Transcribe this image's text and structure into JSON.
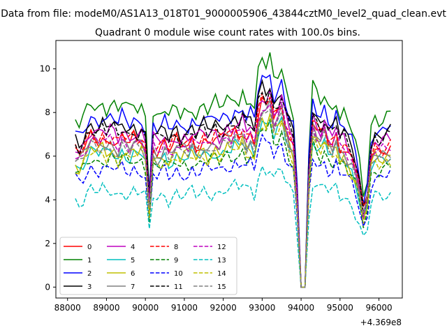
{
  "chart_data": {
    "type": "line",
    "suptitle": "Data from file: modeM0/AS1A13_018T01_9000005906_43844cztM0_level2_quad_clean.evt",
    "title": "Quadrant 0 module wise count rates with 100.0s bins.",
    "xlabel": "",
    "ylabel": "",
    "offset_text": "+4.369e8",
    "xlim": [
      87700,
      96600
    ],
    "ylim": [
      -0.5,
      11.3
    ],
    "xticks": [
      88000,
      89000,
      90000,
      91000,
      92000,
      93000,
      94000,
      95000,
      96000
    ],
    "xtick_labels": [
      "88000",
      "89000",
      "90000",
      "91000",
      "92000",
      "93000",
      "94000",
      "95000",
      "96000"
    ],
    "yticks": [
      0,
      2,
      4,
      6,
      8,
      10
    ],
    "ytick_labels": [
      "0",
      "2",
      "4",
      "6",
      "8",
      "10"
    ],
    "grid": false,
    "legend_position": "lower-left",
    "legend_columns": 4,
    "x_start": 88200,
    "x_step": 100,
    "n_points": 82,
    "baseline_profile": [
      0.95,
      0.92,
      0.96,
      1.02,
      1.06,
      1.04,
      1.03,
      1.06,
      1.02,
      1.05,
      1.04,
      1.0,
      1.06,
      1.03,
      1.01,
      1.05,
      1.02,
      1.04,
      0.98,
      0.58,
      1.0,
      0.97,
      0.99,
      1.02,
      0.96,
      1.0,
      1.03,
      0.98,
      1.01,
      1.0,
      1.04,
      0.99,
      1.02,
      1.05,
      1.01,
      1.03,
      1.06,
      1.02,
      1.05,
      1.08,
      1.06,
      1.1,
      1.07,
      1.12,
      1.05,
      1.08,
      1.02,
      1.22,
      1.3,
      1.26,
      1.32,
      1.18,
      1.22,
      1.28,
      1.15,
      1.06,
      1.0,
      0.6,
      0.0,
      0.0,
      0.78,
      1.16,
      1.1,
      1.06,
      1.12,
      1.04,
      1.02,
      1.08,
      0.98,
      1.0,
      0.94,
      0.9,
      0.82,
      0.7,
      0.52,
      0.62,
      0.92,
      0.98,
      0.96,
      0.97,
      0.99,
      1.0
    ],
    "series": [
      {
        "name": "0",
        "color": "#ff0000",
        "dash": "solid",
        "level": 6.5,
        "phase": 0.3
      },
      {
        "name": "1",
        "color": "#008000",
        "dash": "solid",
        "level": 8.0,
        "phase": 1.1
      },
      {
        "name": "2",
        "color": "#0000ff",
        "dash": "solid",
        "level": 7.4,
        "phase": 2.0
      },
      {
        "name": "3",
        "color": "#000000",
        "dash": "solid",
        "level": 7.1,
        "phase": 2.7
      },
      {
        "name": "4",
        "color": "#bf00bf",
        "dash": "solid",
        "level": 6.8,
        "phase": 3.5
      },
      {
        "name": "5",
        "color": "#00bfbf",
        "dash": "solid",
        "level": 5.9,
        "phase": 4.2
      },
      {
        "name": "6",
        "color": "#bfbf00",
        "dash": "solid",
        "level": 6.0,
        "phase": 5.0
      },
      {
        "name": "7",
        "color": "#808080",
        "dash": "solid",
        "level": 6.3,
        "phase": 5.8
      },
      {
        "name": "8",
        "color": "#ff0000",
        "dash": "dashed",
        "level": 6.6,
        "phase": 0.7
      },
      {
        "name": "9",
        "color": "#008000",
        "dash": "dashed",
        "level": 5.6,
        "phase": 1.5
      },
      {
        "name": "10",
        "color": "#0000ff",
        "dash": "dashed",
        "level": 5.2,
        "phase": 2.3
      },
      {
        "name": "11",
        "color": "#000000",
        "dash": "dashed",
        "level": 6.9,
        "phase": 3.1
      },
      {
        "name": "12",
        "color": "#bf00bf",
        "dash": "dashed",
        "level": 6.4,
        "phase": 3.9
      },
      {
        "name": "13",
        "color": "#00bfbf",
        "dash": "dashed",
        "level": 4.2,
        "phase": 4.6
      },
      {
        "name": "14",
        "color": "#bfbf00",
        "dash": "dashed",
        "level": 5.8,
        "phase": 5.4
      },
      {
        "name": "15",
        "color": "#808080",
        "dash": "dashed",
        "level": 6.1,
        "phase": 6.1
      }
    ]
  }
}
